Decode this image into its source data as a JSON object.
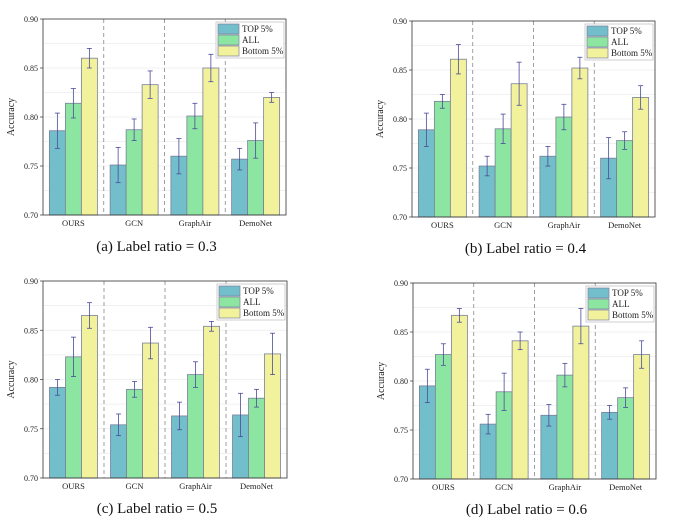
{
  "chart_data": [
    {
      "type": "bar",
      "caption": "(a)  Label ratio = 0.3",
      "ylabel": "Accuracy",
      "ylim": [
        0.7,
        0.9
      ],
      "yticks": [
        "0.70",
        "0.75",
        "0.80",
        "0.85",
        "0.90"
      ],
      "grid": true,
      "legend_position": "top-right",
      "categories": [
        "OURS",
        "GCN",
        "GraphAir",
        "DemoNet"
      ],
      "series": [
        {
          "name": "TOP 5%",
          "values": [
            0.786,
            0.751,
            0.76,
            0.757
          ],
          "errors": [
            0.018,
            0.018,
            0.018,
            0.011
          ]
        },
        {
          "name": "ALL",
          "values": [
            0.814,
            0.787,
            0.801,
            0.776
          ],
          "errors": [
            0.015,
            0.011,
            0.013,
            0.018
          ]
        },
        {
          "name": "Bottom 5%",
          "values": [
            0.86,
            0.833,
            0.85,
            0.82
          ],
          "errors": [
            0.01,
            0.014,
            0.014,
            0.005
          ]
        }
      ]
    },
    {
      "type": "bar",
      "caption": "(b)  Label ratio = 0.4",
      "ylabel": "Accuracy",
      "ylim": [
        0.7,
        0.9
      ],
      "yticks": [
        "0.70",
        "0.75",
        "0.80",
        "0.85",
        "0.90"
      ],
      "grid": true,
      "legend_position": "top-right",
      "categories": [
        "OURS",
        "GCN",
        "GraphAir",
        "DemoNet"
      ],
      "series": [
        {
          "name": "TOP 5%",
          "values": [
            0.789,
            0.752,
            0.762,
            0.76
          ],
          "errors": [
            0.017,
            0.01,
            0.01,
            0.021
          ]
        },
        {
          "name": "ALL",
          "values": [
            0.818,
            0.79,
            0.802,
            0.778
          ],
          "errors": [
            0.007,
            0.015,
            0.013,
            0.009
          ]
        },
        {
          "name": "Bottom 5%",
          "values": [
            0.861,
            0.836,
            0.852,
            0.822
          ],
          "errors": [
            0.015,
            0.022,
            0.011,
            0.012
          ]
        }
      ]
    },
    {
      "type": "bar",
      "caption": "(c)  Label ratio = 0.5",
      "ylabel": "Accuracy",
      "ylim": [
        0.7,
        0.9
      ],
      "yticks": [
        "0.70",
        "0.75",
        "0.80",
        "0.85",
        "0.90"
      ],
      "grid": true,
      "legend_position": "top-right",
      "categories": [
        "OURS",
        "GCN",
        "GraphAir",
        "DemoNet"
      ],
      "series": [
        {
          "name": "TOP 5%",
          "values": [
            0.792,
            0.754,
            0.763,
            0.764
          ],
          "errors": [
            0.008,
            0.011,
            0.014,
            0.022
          ]
        },
        {
          "name": "ALL",
          "values": [
            0.823,
            0.79,
            0.805,
            0.781
          ],
          "errors": [
            0.02,
            0.008,
            0.013,
            0.009
          ]
        },
        {
          "name": "Bottom 5%",
          "values": [
            0.865,
            0.837,
            0.854,
            0.826
          ],
          "errors": [
            0.013,
            0.016,
            0.005,
            0.021
          ]
        }
      ]
    },
    {
      "type": "bar",
      "caption": "(d)  Label ratio = 0.6",
      "ylabel": "Accuracy",
      "ylim": [
        0.7,
        0.9
      ],
      "yticks": [
        "0.70",
        "0.75",
        "0.80",
        "0.85",
        "0.90"
      ],
      "grid": true,
      "legend_position": "top-right",
      "categories": [
        "OURS",
        "GCN",
        "GraphAir",
        "DemoNet"
      ],
      "series": [
        {
          "name": "TOP 5%",
          "values": [
            0.795,
            0.756,
            0.765,
            0.768
          ],
          "errors": [
            0.017,
            0.01,
            0.011,
            0.007
          ]
        },
        {
          "name": "ALL",
          "values": [
            0.827,
            0.789,
            0.806,
            0.783
          ],
          "errors": [
            0.011,
            0.019,
            0.012,
            0.01
          ]
        },
        {
          "name": "Bottom 5%",
          "values": [
            0.867,
            0.841,
            0.856,
            0.827
          ],
          "errors": [
            0.007,
            0.009,
            0.018,
            0.014
          ]
        }
      ]
    }
  ],
  "colors": {
    "TOP 5%": "#72BFCB",
    "ALL": "#8CE6A2",
    "Bottom 5%": "#F2F29C",
    "error_bar": "#4B4B9A",
    "bar_edge": "#7A7F9A"
  }
}
